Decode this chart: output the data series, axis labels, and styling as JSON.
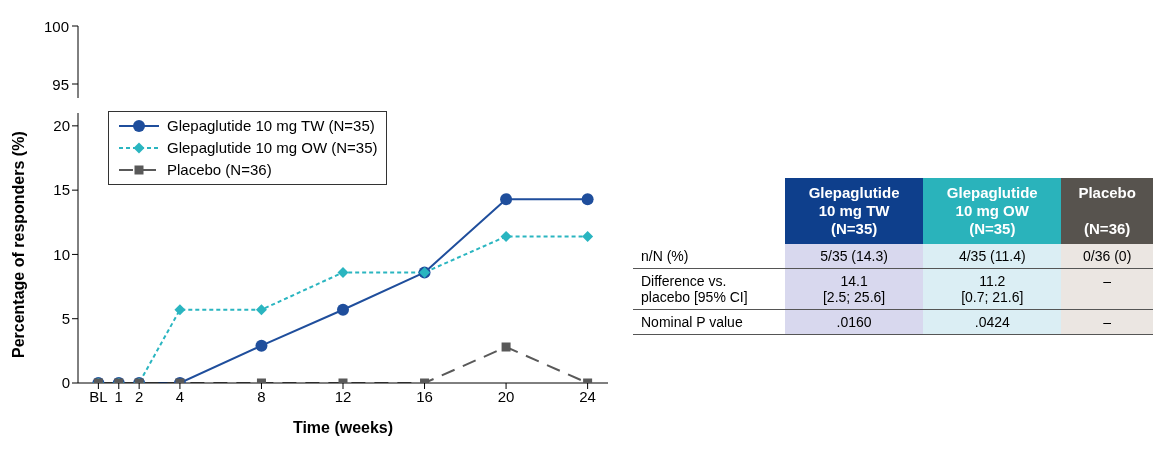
{
  "chart_data": [
    {
      "type": "other",
      "annotations": [
        "100",
        "95"
      ]
    },
    {
      "type": "line",
      "xlabel": "Time (weeks)",
      "ylabel": "Percentage of responders (%)",
      "x": [
        0,
        1,
        2,
        4,
        8,
        12,
        16,
        20,
        24
      ],
      "xlim": [
        -1,
        25
      ],
      "xticks": [
        {
          "value": 0,
          "label": "BL"
        },
        1,
        2,
        4,
        8,
        12,
        16,
        20,
        24
      ],
      "ylim": [
        0,
        21
      ],
      "yticks": [
        0,
        5,
        10,
        15,
        20
      ],
      "grid": false,
      "legend": "top left",
      "series": [
        {
          "name": "Glepaglutide 10 mg TW (N=35)",
          "color": "#1f4e9c",
          "marker": "circle",
          "line_style": "solid",
          "values": [
            0,
            0,
            0,
            0,
            2.9,
            5.7,
            8.6,
            14.3,
            14.3
          ]
        },
        {
          "name": "Glepaglutide 10 mg OW (N=35)",
          "color": "#2ab5c0",
          "marker": "diamond",
          "line_style": "dotted",
          "values": [
            0,
            0,
            0,
            5.7,
            5.7,
            8.6,
            8.6,
            11.4,
            11.4
          ]
        },
        {
          "name": "Placebo (N=36)",
          "color": "#595959",
          "marker": "square",
          "line_style": "dashed",
          "values": [
            0,
            0,
            0,
            0,
            0,
            0,
            0,
            2.8,
            0
          ]
        }
      ]
    },
    {
      "type": "other",
      "categories": [
        "Glepaglutide\n10 mg TW\n(N=35)",
        "Glepaglutide\n10 mg OW\n(N=35)",
        "Placebo\n\n(N=36)"
      ],
      "colors": [
        "#0e3f8c",
        "#2ab3bb",
        "#57534e"
      ],
      "y_categories": [
        "n/N (%)",
        "Difference vs.\nplacebo [95% CI]",
        "Nominal P value"
      ],
      "cell_labels": [
        [
          "5/35  (14.3)",
          "4/35  (11.4)",
          "0/36 (0)"
        ],
        [
          "14.1\n[2.5; 25.6]",
          "11.2\n[0.7; 21.6]",
          "–"
        ],
        [
          ".0160",
          ".0424",
          "–"
        ]
      ]
    }
  ]
}
